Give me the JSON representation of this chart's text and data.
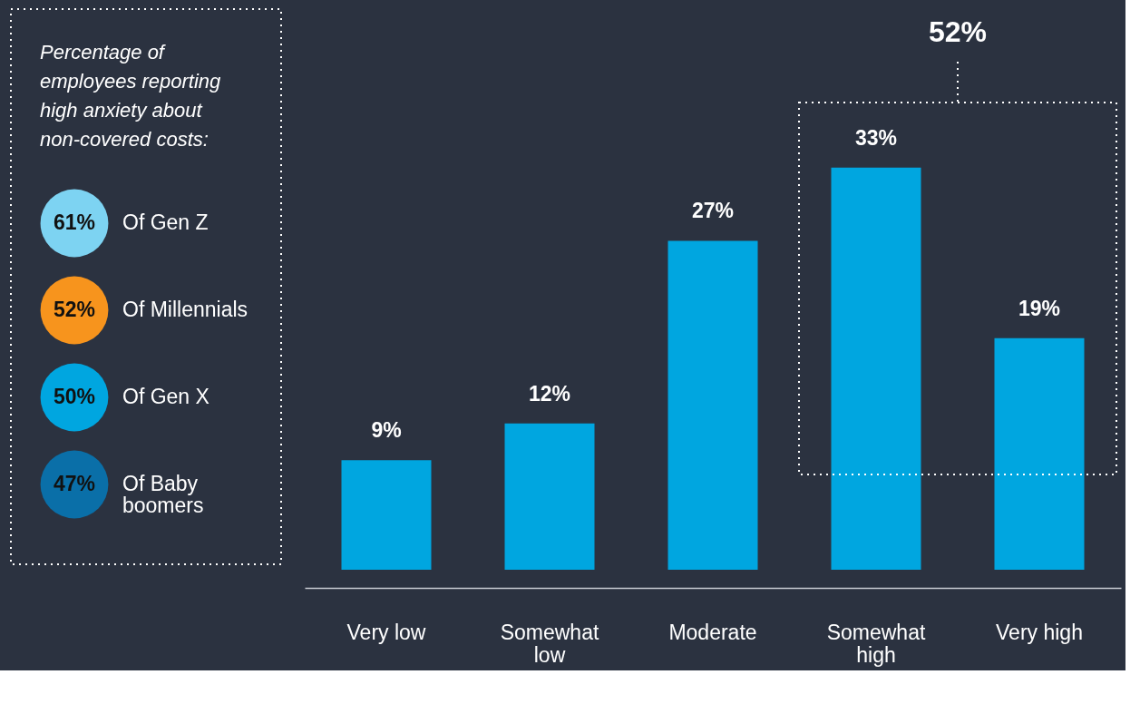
{
  "chart_data": [
    {
      "type": "other",
      "title": "Percentage of employees reporting high anxiety about non-covered costs:",
      "categories": [
        "Of Gen Z",
        "Of Millennials",
        "Of Gen X",
        "Of Baby boomers"
      ],
      "values": [
        61,
        52,
        50,
        47
      ],
      "value_labels": [
        "61%",
        "52%",
        "50%",
        "47%"
      ],
      "colors": [
        "#7dd3f2",
        "#f7941d",
        "#00a6e0",
        "#0a6fa8"
      ]
    },
    {
      "type": "bar",
      "categories": [
        "Very low",
        "Somewhat low",
        "Moderate",
        "Somewhat high",
        "Very high"
      ],
      "values": [
        9,
        12,
        27,
        33,
        19
      ],
      "value_labels": [
        "9%",
        "12%",
        "27%",
        "33%",
        "19%"
      ],
      "color": "#00a6e0",
      "annotations": [
        "52%"
      ]
    }
  ]
}
